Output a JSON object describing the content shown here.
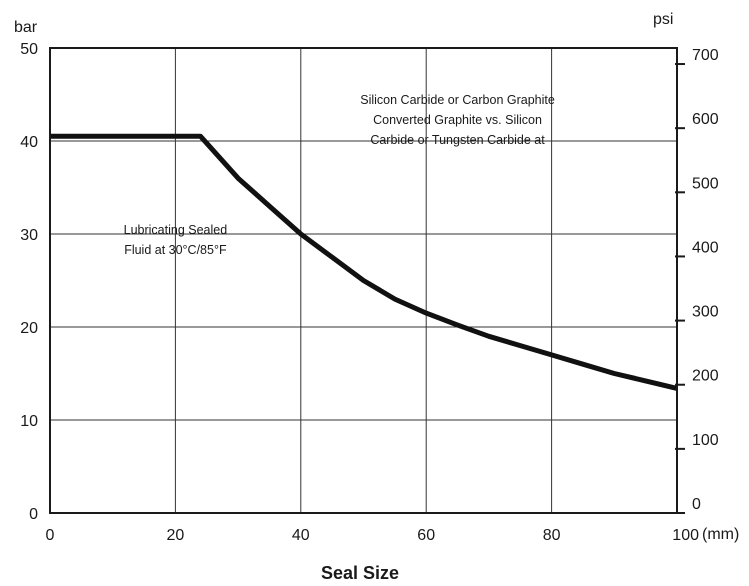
{
  "chart_data": {
    "type": "line",
    "title": "",
    "xlabel": "Seal Size",
    "x_unit": "(mm)",
    "ylabel_left": "bar",
    "ylabel_right": "psi",
    "xlim": [
      0,
      100
    ],
    "ylim": [
      0,
      50
    ],
    "ylim_right": [
      0,
      725
    ],
    "x_ticks": [
      0,
      20,
      40,
      60,
      80,
      100
    ],
    "y_ticks_left": [
      0,
      10,
      20,
      30,
      40,
      50
    ],
    "y_ticks_right": [
      0,
      100,
      200,
      300,
      400,
      500,
      600,
      700
    ],
    "grid": true,
    "series": [
      {
        "x": [
          0,
          24,
          30,
          35,
          40,
          45,
          50,
          55,
          60,
          65,
          70,
          75,
          80,
          85,
          90,
          95,
          100
        ],
        "y": [
          40.5,
          40.5,
          36.0,
          33.0,
          30.0,
          27.5,
          25.0,
          23.0,
          21.5,
          20.2,
          19.0,
          18.0,
          17.0,
          16.0,
          15.0,
          14.2,
          13.4
        ]
      }
    ],
    "annotations": [
      {
        "lines": [
          "Silicon Carbide or Carbon Graphite",
          "Converted Graphite vs. Silicon",
          "Carbide or Tungsten Carbide at"
        ],
        "x": 65,
        "y": 44
      },
      {
        "lines": [
          "Lubricating Sealed",
          "Fluid at 30°C/85°F"
        ],
        "x": 20,
        "y": 30
      }
    ]
  }
}
